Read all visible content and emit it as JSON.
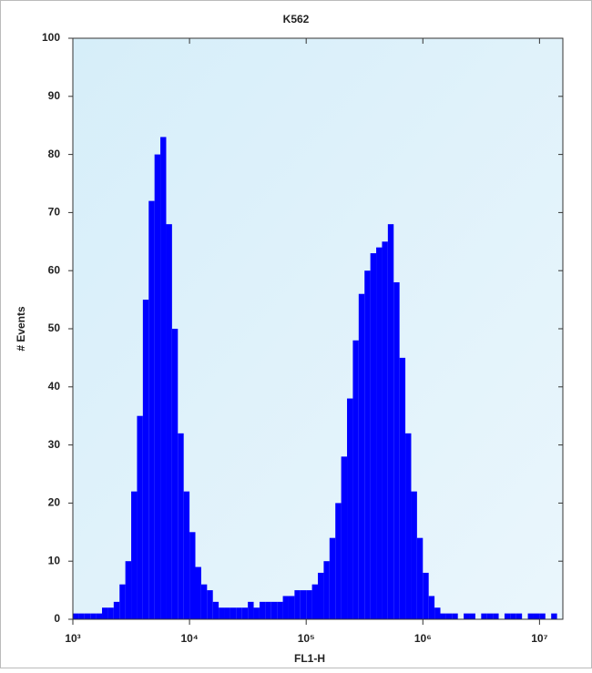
{
  "chart_data": {
    "type": "histogram",
    "title": "K562",
    "x_label": "FL1-H",
    "y_label": "# Events",
    "x_scale": "log",
    "color": "#0000ff",
    "bins": [
      1000,
      1122,
      1259,
      1413,
      1585,
      1778,
      1995,
      2239,
      2512,
      2818,
      3162,
      3548,
      3981,
      4467,
      5012,
      5623,
      6310,
      7079,
      7943,
      8913,
      10000,
      11220,
      12590,
      14130,
      15850,
      17780,
      19950,
      22390,
      25120,
      28180,
      31620,
      35480,
      39810,
      44670,
      50120,
      56230,
      63100,
      70790,
      79430,
      89130,
      100000,
      112200,
      125900,
      141300,
      158500,
      177800,
      199500,
      223900,
      251200,
      281800,
      316200,
      354800,
      398100,
      446700,
      501200,
      562300,
      631000,
      707900,
      794300,
      891300,
      1000000,
      1122000,
      1259000,
      1413000,
      1585000,
      1778000,
      1995000,
      2239000,
      2512000,
      2818000,
      3162000,
      3548000,
      3981000,
      4467000,
      5012000,
      5623000,
      6310000,
      7079000,
      7943000,
      8913000,
      10000000,
      11220000,
      12590000,
      14130000,
      15850000
    ],
    "values": [
      1,
      1,
      1,
      1,
      1,
      2,
      2,
      3,
      6,
      10,
      22,
      35,
      55,
      72,
      80,
      83,
      68,
      50,
      32,
      22,
      15,
      9,
      6,
      5,
      3,
      2,
      2,
      2,
      2,
      2,
      3,
      2,
      3,
      3,
      3,
      3,
      4,
      4,
      5,
      5,
      5,
      6,
      8,
      10,
      14,
      20,
      28,
      38,
      48,
      56,
      60,
      63,
      64,
      65,
      68,
      58,
      45,
      32,
      22,
      14,
      8,
      4,
      2,
      1,
      1,
      1,
      0,
      1,
      1,
      0,
      1,
      1,
      1,
      0,
      1,
      1,
      1,
      0,
      1,
      1,
      1,
      0,
      1,
      0
    ],
    "xlim": [
      1000,
      15850000
    ],
    "xticks": [
      {
        "value": 1000,
        "label": "10³"
      },
      {
        "value": 10000,
        "label": "10⁴"
      },
      {
        "value": 100000,
        "label": "10⁵"
      },
      {
        "value": 1000000,
        "label": "10⁶"
      },
      {
        "value": 10000000,
        "label": "10⁷"
      }
    ],
    "ylim": [
      0,
      100
    ],
    "yticks": [
      0,
      10,
      20,
      30,
      40,
      50,
      60,
      70,
      80,
      90,
      100
    ]
  }
}
